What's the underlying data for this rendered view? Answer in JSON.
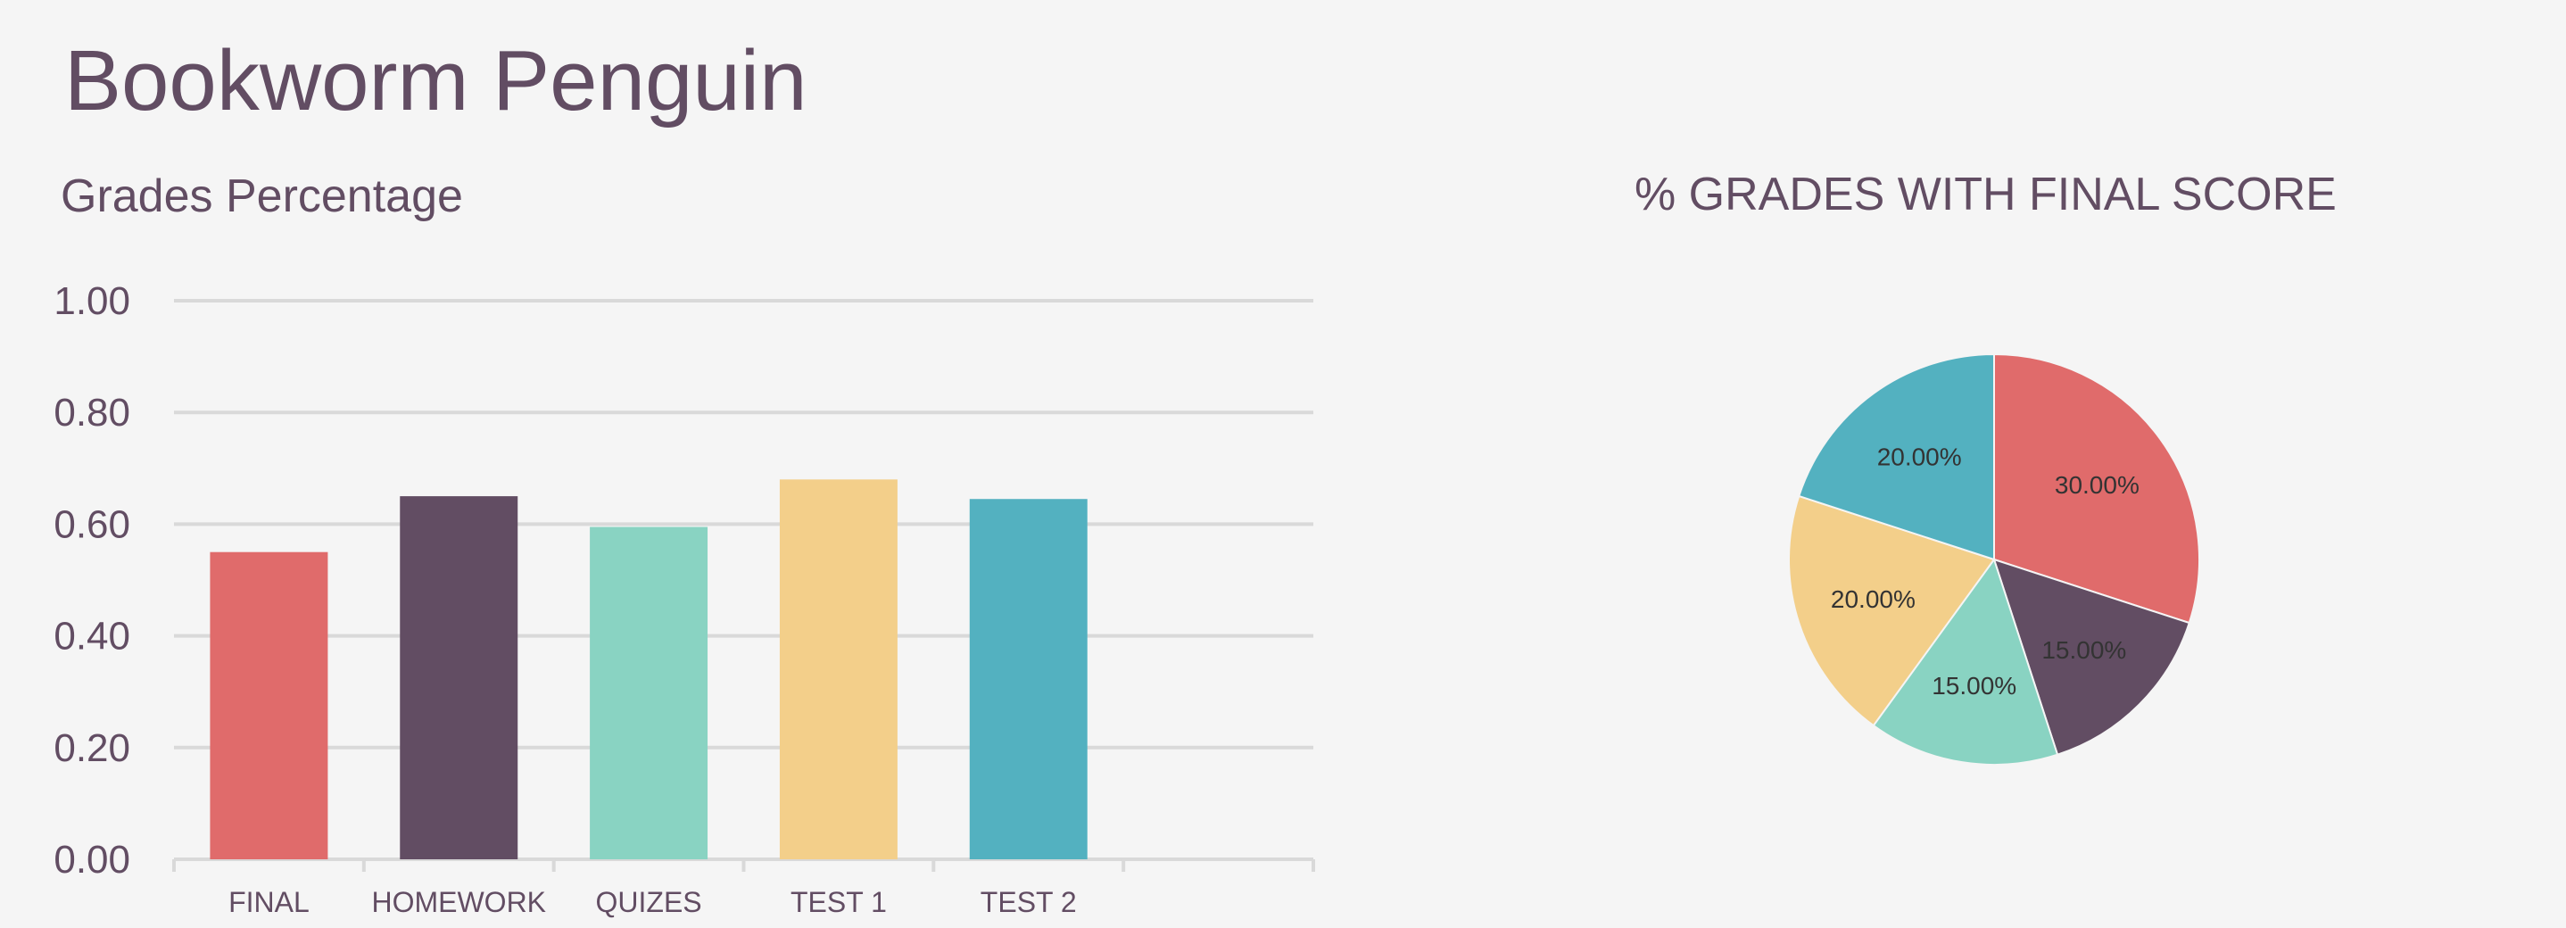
{
  "page": {
    "title": "Bookworm Penguin"
  },
  "chart_data": [
    {
      "type": "bar",
      "title": "Grades Percentage",
      "categories": [
        "FINAL",
        "HOMEWORK",
        "QUIZES",
        "TEST 1",
        "TEST 2",
        ""
      ],
      "values": [
        0.55,
        0.65,
        0.595,
        0.68,
        0.645,
        null
      ],
      "colors": [
        "#e06b6b",
        "#624d63",
        "#89d3c2",
        "#f3cf8a",
        "#53b1c0",
        null
      ],
      "ylim": [
        0,
        1
      ],
      "yticks": [
        "0.00",
        "0.20",
        "0.40",
        "0.60",
        "0.80",
        "1.00"
      ],
      "grid": true,
      "legend": "none"
    },
    {
      "type": "pie",
      "title": "% GRADES WITH FINAL SCORE",
      "slices": [
        {
          "value": 30,
          "label": "30.00%",
          "color": "#e06b6b"
        },
        {
          "value": 15,
          "label": "15.00%",
          "color": "#624d63"
        },
        {
          "value": 15,
          "label": "15.00%",
          "color": "#89d3c2"
        },
        {
          "value": 20,
          "label": "20.00%",
          "color": "#f3cf8a"
        },
        {
          "value": 20,
          "label": "20.00%",
          "color": "#53b1c0"
        }
      ],
      "legend": "none"
    }
  ]
}
